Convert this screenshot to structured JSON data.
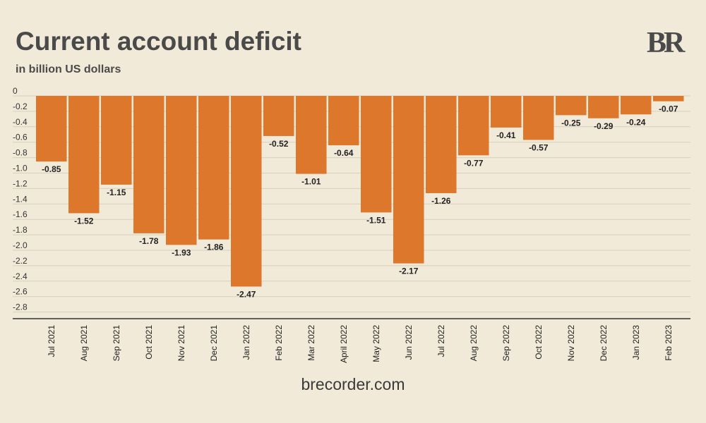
{
  "chart_data": {
    "type": "bar",
    "title": "Current account deficit",
    "subtitle": "in billion US dollars",
    "categories": [
      "Jul 2021",
      "Aug 2021",
      "Sep 2021",
      "Oct 2021",
      "Nov 2021",
      "Dec 2021",
      "Jan 2022",
      "Feb 2022",
      "Mar 2022",
      "April 2022",
      "May 2022",
      "Jun 2022",
      "Jul 2022",
      "Aug 2022",
      "Sep 2022",
      "Oct 2022",
      "Nov 2022",
      "Dec 2022",
      "Jan 2023",
      "Feb 2023"
    ],
    "values": [
      -0.85,
      -1.52,
      -1.15,
      -1.78,
      -1.93,
      -1.86,
      -2.47,
      -0.52,
      -1.01,
      -0.64,
      -1.51,
      -2.17,
      -1.26,
      -0.77,
      -0.41,
      -0.57,
      -0.25,
      -0.29,
      -0.24,
      -0.07
    ],
    "value_labels": [
      "-0.85",
      "-1.52",
      "-1.15",
      "-1.78",
      "-1.93",
      "-1.86",
      "-2.47",
      "-0.52",
      "-1.01",
      "-0.64",
      "-1.51",
      "-2.17",
      "-1.26",
      "-0.77",
      "-0.41",
      "-0.57",
      "-0.25",
      "-0.29",
      "-0.24",
      "-0.07"
    ],
    "ylim": [
      -2.9,
      0
    ],
    "yticks": [
      0,
      -0.2,
      -0.4,
      -0.6,
      -0.8,
      -1.0,
      -1.2,
      -1.4,
      -1.6,
      -1.8,
      -2.0,
      -2.2,
      -2.4,
      -2.6,
      -2.8
    ],
    "ytick_labels": [
      "0",
      "-0.2",
      "-0.4",
      "-0.6",
      "-0.8",
      "-1.0",
      "-1.2",
      "-1.4",
      "-1.6",
      "-1.8",
      "-2.0",
      "-2.2",
      "-2.4",
      "-2.6",
      "-2.8"
    ],
    "xlabel": "",
    "ylabel": "",
    "grid": true,
    "bar_color": "#dc772c"
  },
  "brand": {
    "logo_text": "BR",
    "website": "brecorder.com"
  },
  "colors": {
    "background": "#f2ead8",
    "text": "#4a4a4a",
    "grid": "#d8d0bd",
    "axis": "#333333"
  }
}
